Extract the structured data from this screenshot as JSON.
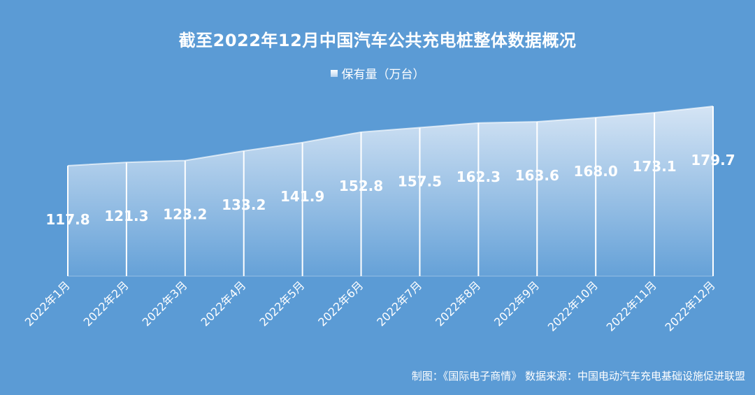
{
  "chart_data": {
    "type": "area",
    "title": "截至2022年12月中国汽车公共充电桩整体数据概况",
    "series": [
      {
        "name": "保有量（万台）",
        "values": [
          117.8,
          121.3,
          123.2,
          133.2,
          141.9,
          152.8,
          157.5,
          162.3,
          163.6,
          168.0,
          173.1,
          179.7
        ]
      }
    ],
    "categories": [
      "2022年1月",
      "2022年2月",
      "2022年3月",
      "2022年4月",
      "2022年5月",
      "2022年6月",
      "2022年7月",
      "2022年8月",
      "2022年9月",
      "2022年10月",
      "2022年11月",
      "2022年12月"
    ],
    "value_labels": [
      "117.8",
      "121.3",
      "123.2",
      "133.2",
      "141.9",
      "152.8",
      "157.5",
      "162.3",
      "163.6",
      "168.0",
      "173.1",
      "179.7"
    ],
    "xlabel": "",
    "ylabel": "",
    "grid": false,
    "legend_position": "top-center",
    "colors": {
      "background": "#5b9bd5",
      "area_top": "#d6e6f5",
      "line": "#ffffff",
      "text": "#ffffff"
    }
  },
  "footer": "制图：《国际电子商情》 数据来源：中国电动汽车充电基础设施促进联盟"
}
